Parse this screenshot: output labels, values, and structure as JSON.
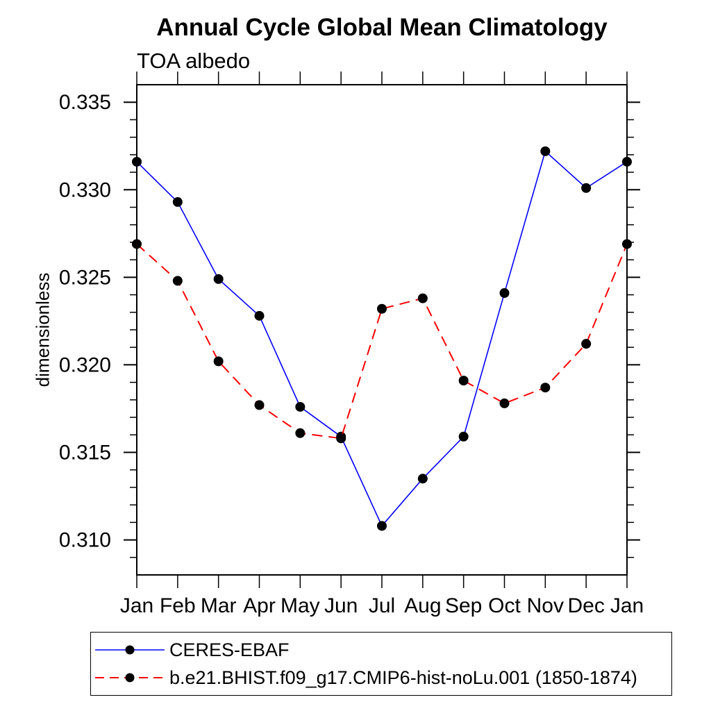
{
  "figure": {
    "title": "Annual Cycle Global Mean Climatology",
    "subtitle": "TOA albedo",
    "ylabel": "dimensionless"
  },
  "chart_data": {
    "type": "line",
    "title": "Annual Cycle Global Mean Climatology",
    "subtitle": "TOA albedo",
    "xlabel": "",
    "ylabel": "dimensionless",
    "categories": [
      "Jan",
      "Feb",
      "Mar",
      "Apr",
      "May",
      "Jun",
      "Jul",
      "Aug",
      "Sep",
      "Oct",
      "Nov",
      "Dec",
      "Jan"
    ],
    "series": [
      {
        "name": "CERES-EBAF",
        "color": "#0000ff",
        "line_style": "solid",
        "line_width": 1.6,
        "marker": "circle",
        "marker_color": "#000000",
        "marker_radius": 7,
        "values": [
          0.3316,
          0.3293,
          0.3249,
          0.3228,
          0.3176,
          0.3159,
          0.3108,
          0.3135,
          0.3159,
          0.3241,
          0.3322,
          0.3301,
          0.3316
        ]
      },
      {
        "name": "b.e21.BHIST.f09_g17.CMIP6-hist-noLu.001 (1850-1874)",
        "color": "#ff0000",
        "line_style": "dashed",
        "line_width": 2,
        "marker": "circle",
        "marker_color": "#000000",
        "marker_radius": 7,
        "values": [
          0.3269,
          0.3248,
          0.3202,
          0.3177,
          0.3161,
          0.3158,
          0.3232,
          0.3238,
          0.3191,
          0.3178,
          0.3187,
          0.3212,
          0.3269
        ]
      }
    ],
    "ylim": [
      0.308,
      0.336
    ],
    "y_major_ticks": [
      0.31,
      0.315,
      0.32,
      0.325,
      0.33,
      0.335
    ],
    "y_tick_labels": [
      "0.310",
      "0.315",
      "0.320",
      "0.325",
      "0.330",
      "0.335"
    ],
    "y_minor_step": 0.001,
    "grid": false,
    "legend_position": "bottom",
    "axis_color": "#000000",
    "background_color": "#ffffff"
  }
}
